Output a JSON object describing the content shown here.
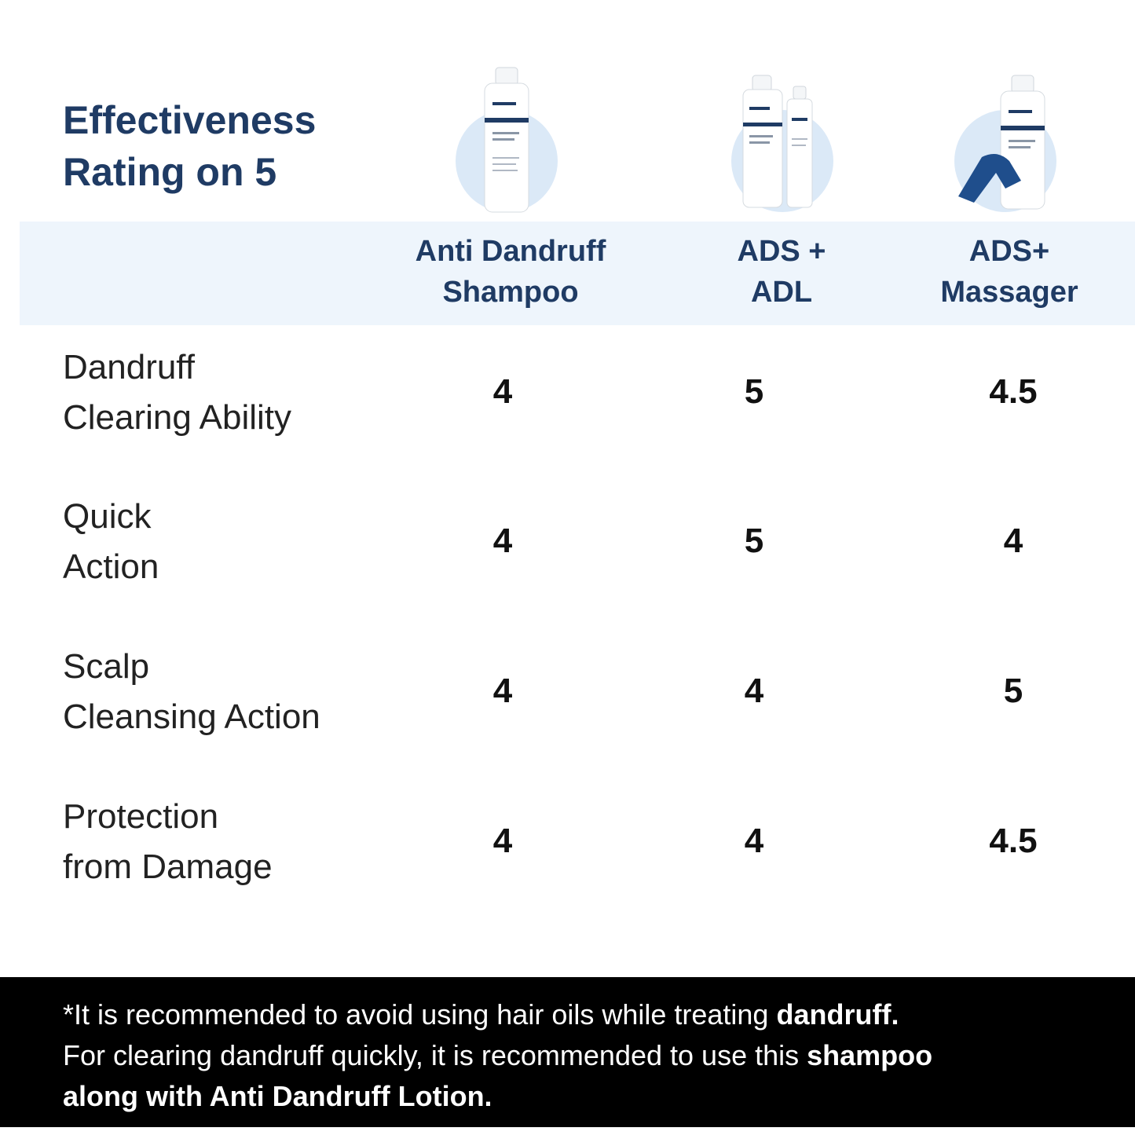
{
  "title": {
    "line1": "Effectiveness",
    "line2": "Rating on 5"
  },
  "columns": [
    {
      "line1": "Anti Dandruff",
      "line2": "Shampoo",
      "image_icon": "shampoo-bottle-icon"
    },
    {
      "line1": "ADS +",
      "line2": "ADL",
      "image_icon": "shampoo-and-lotion-icon"
    },
    {
      "line1": "ADS+",
      "line2": "Massager",
      "image_icon": "shampoo-and-massager-icon"
    }
  ],
  "rows": [
    {
      "line1": "Dandruff",
      "line2": "Clearing Ability",
      "scores": [
        "4",
        "5",
        "4.5"
      ]
    },
    {
      "line1": "Quick",
      "line2": "Action",
      "scores": [
        "4",
        "5",
        "4"
      ]
    },
    {
      "line1": "Scalp",
      "line2": "Cleansing Action",
      "scores": [
        "4",
        "4",
        "5"
      ]
    },
    {
      "line1": "Protection",
      "line2": "from Damage",
      "scores": [
        "4",
        "4",
        "4.5"
      ]
    }
  ],
  "footer": {
    "l1a": "*It is recommended to avoid using hair oils while treating ",
    "l1b": "dandruff.",
    "l2a": "For clearing dandruff quickly, it is recommended to use this ",
    "l2b": "shampoo",
    "l3": "along with Anti Dandruff Lotion."
  },
  "colors": {
    "brand_navy": "#1f3b64",
    "header_band": "#eef5fc",
    "footer_bg": "#000000"
  }
}
